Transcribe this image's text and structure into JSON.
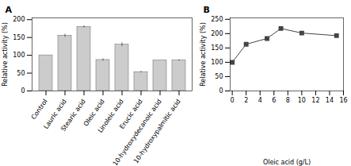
{
  "chart_data": [
    {
      "type": "bar",
      "title": "A",
      "categories": [
        "Control",
        "Lauric acid",
        "Stearic acid",
        "Oleic acid",
        "Linoleic acid",
        "Erucic acid",
        "10-hydroxydecanoic acid",
        "10-hydroxypalmitic acid"
      ],
      "values": [
        100,
        155,
        180,
        87,
        130,
        53,
        86,
        86
      ],
      "errors": [
        0,
        4,
        3,
        3,
        5,
        2,
        0,
        2
      ],
      "color": "#cccccc",
      "ylabel": "Relative activity (%)",
      "ylim": [
        0,
        205
      ],
      "yticks": [
        0,
        50,
        100,
        150,
        200
      ]
    },
    {
      "type": "line",
      "title": "B",
      "x": [
        0,
        2,
        5,
        7,
        10,
        15
      ],
      "values": [
        100,
        163,
        183,
        218,
        202,
        193
      ],
      "marker": "square",
      "color": "#444444",
      "xlabel": "Oleic acid (g/L)",
      "ylabel": "Relative activity (%)",
      "xlim": [
        -0.3,
        16
      ],
      "ylim": [
        0,
        255
      ],
      "xticks": [
        0,
        2,
        4,
        6,
        8,
        10,
        12,
        14,
        16
      ],
      "yticks": [
        0,
        50,
        100,
        150,
        200,
        250
      ]
    }
  ]
}
